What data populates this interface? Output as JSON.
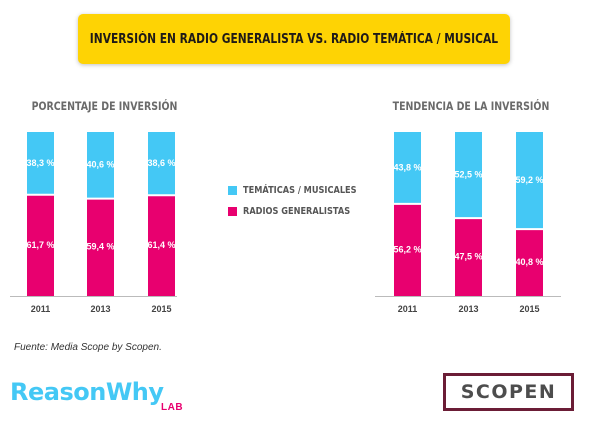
{
  "title": "INVERSIÓN EN RADIO GENERALISTA VS. RADIO TEMÁTICA / MUSICAL",
  "legend": {
    "items": [
      {
        "label": "TEMÁTICAS / MUSICALES",
        "color": "#44c8f5"
      },
      {
        "label": "RADIOS GENERALISTAS",
        "color": "#e8006f"
      }
    ]
  },
  "source": "Fuente: Media Scope by Scopen.",
  "logos": {
    "reasonwhy": "ReasonWhy",
    "lab": "LAB",
    "scopen": "SCOPEN"
  },
  "colors": {
    "tematicas": "#44c8f5",
    "generalistas": "#e8006f",
    "title_bg": "#fed304"
  },
  "chart_data": [
    {
      "type": "bar",
      "stacked": true,
      "title": "PORCENTAJE DE INVERSIÓN",
      "categories": [
        "2011",
        "2013",
        "2015"
      ],
      "series": [
        {
          "name": "RADIOS GENERALISTAS",
          "values": [
            61.7,
            59.4,
            61.4
          ],
          "labels": [
            "61,7 %",
            "59,4 %",
            "61,4 %"
          ]
        },
        {
          "name": "TEMÁTICAS / MUSICALES",
          "values": [
            38.3,
            40.6,
            38.6
          ],
          "labels": [
            "38,3 %",
            "40,6 %",
            "38,6 %"
          ]
        }
      ],
      "ylim": [
        0,
        100
      ]
    },
    {
      "type": "bar",
      "stacked": true,
      "title": "TENDENCIA DE LA INVERSIÓN",
      "categories": [
        "2011",
        "2013",
        "2015"
      ],
      "series": [
        {
          "name": "RADIOS GENERALISTAS",
          "values": [
            56.2,
            47.5,
            40.8
          ],
          "labels": [
            "56,2 %",
            "47,5 %",
            "40,8 %"
          ]
        },
        {
          "name": "TEMÁTICAS / MUSICALES",
          "values": [
            43.8,
            52.5,
            59.2
          ],
          "labels": [
            "43,8 %",
            "52,5 %",
            "59,2 %"
          ]
        }
      ],
      "ylim": [
        0,
        100
      ]
    }
  ]
}
